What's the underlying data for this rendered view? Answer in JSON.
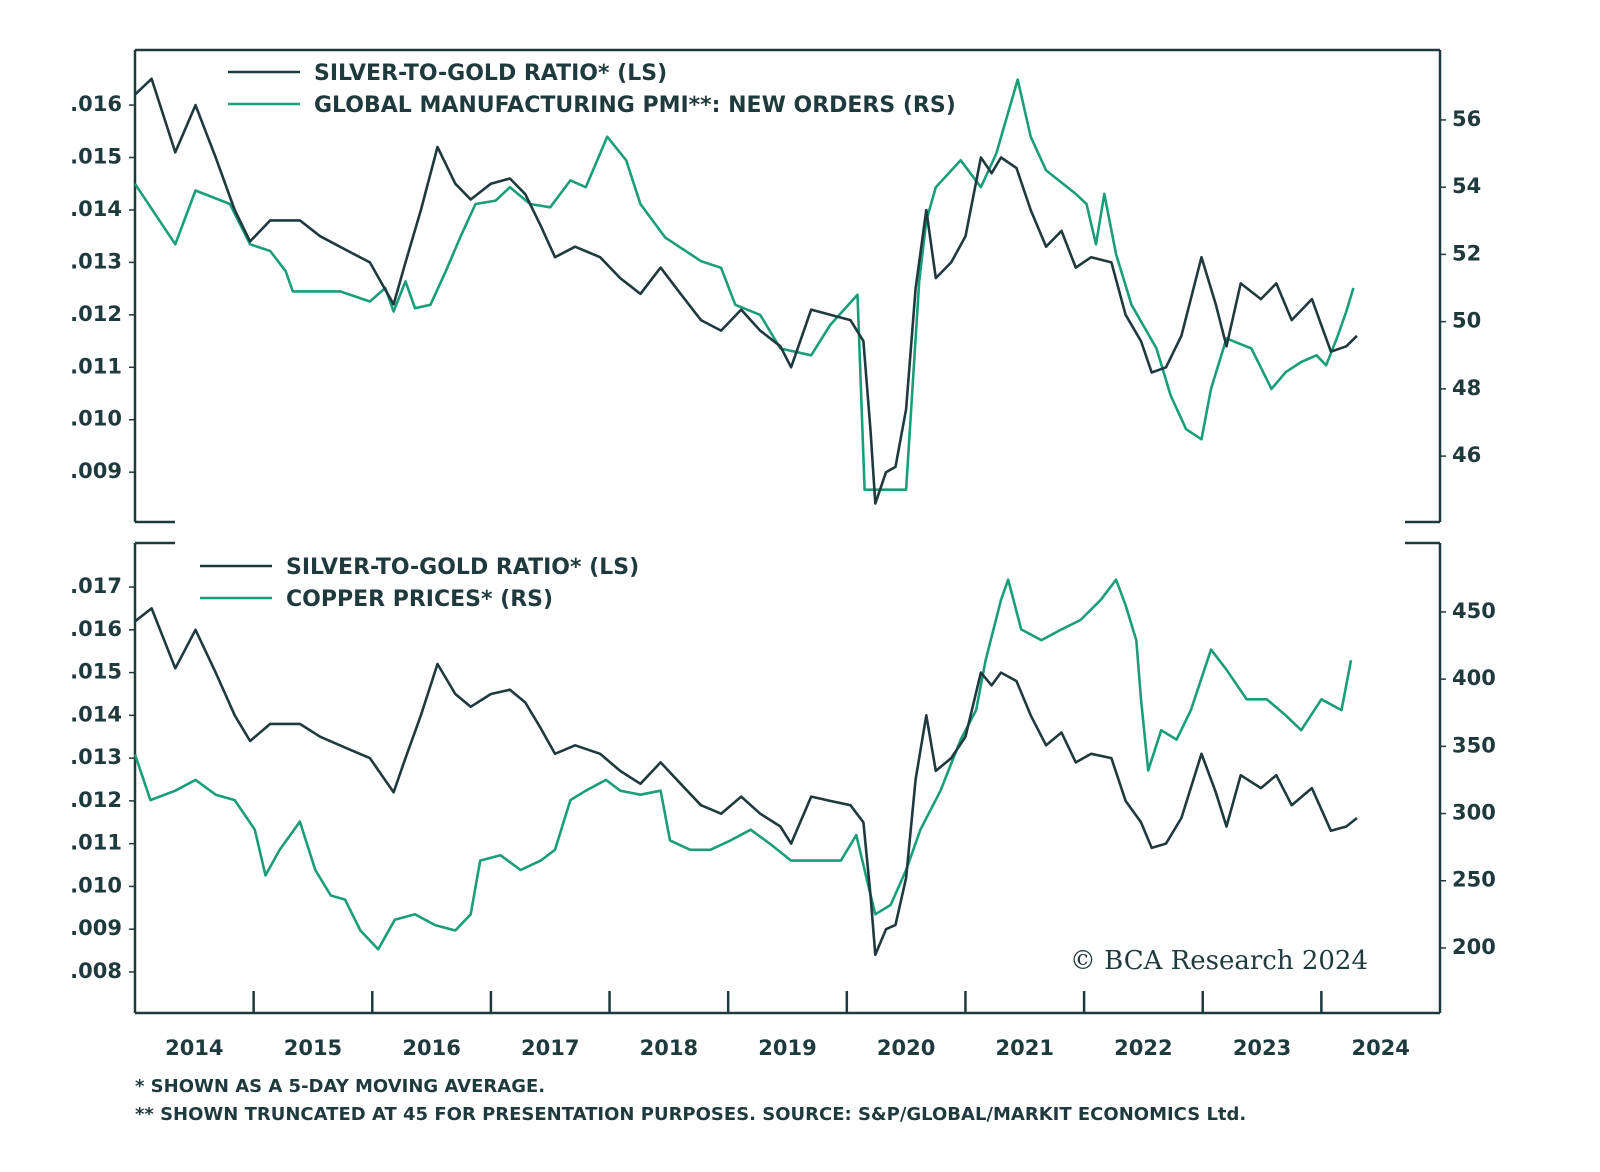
{
  "chart_data": [
    {
      "type": "line",
      "xlim": [
        2014,
        2025
      ],
      "ylim": [
        0.00805,
        0.01705
      ],
      "yticks": [
        {
          "value": 0.009,
          "label": ".009"
        },
        {
          "value": 0.01,
          "label": ".010"
        },
        {
          "value": 0.011,
          "label": ".011"
        },
        {
          "value": 0.012,
          "label": ".012"
        },
        {
          "value": 0.013,
          "label": ".013"
        },
        {
          "value": 0.014,
          "label": ".014"
        },
        {
          "value": 0.015,
          "label": ".015"
        },
        {
          "value": 0.016,
          "label": ".016"
        }
      ],
      "y2lim": [
        44.04,
        58.08
      ],
      "y2ticks": [
        46,
        48,
        50,
        52,
        54,
        56
      ],
      "series": [
        {
          "name": "SILVER-TO-GOLD RATIO* (LS)",
          "color": "#1f3a3d",
          "axis": "y",
          "x": [
            2014.0,
            2014.14,
            2014.34,
            2014.51,
            2014.68,
            2014.84,
            2014.97,
            2015.14,
            2015.39,
            2015.56,
            2015.81,
            2015.98,
            2016.18,
            2016.28,
            2016.41,
            2016.55,
            2016.7,
            2016.83,
            2017.0,
            2017.16,
            2017.29,
            2017.42,
            2017.54,
            2017.71,
            2017.92,
            2018.09,
            2018.26,
            2018.43,
            2018.6,
            2018.77,
            2018.94,
            2019.11,
            2019.27,
            2019.44,
            2019.53,
            2019.7,
            2019.86,
            2020.03,
            2020.14,
            2020.2,
            2020.24,
            2020.33,
            2020.41,
            2020.5,
            2020.58,
            2020.67,
            2020.75,
            2020.88,
            2021.0,
            2021.13,
            2021.22,
            2021.3,
            2021.43,
            2021.55,
            2021.68,
            2021.81,
            2021.93,
            2022.06,
            2022.23,
            2022.35,
            2022.48,
            2022.57,
            2022.69,
            2022.82,
            2022.99,
            2023.11,
            2023.2,
            2023.32,
            2023.49,
            2023.62,
            2023.75,
            2023.92,
            2024.08,
            2024.21,
            2024.3
          ],
          "values": [
            0.0162,
            0.0165,
            0.0151,
            0.016,
            0.015,
            0.014,
            0.0134,
            0.0138,
            0.0138,
            0.0135,
            0.0132,
            0.013,
            0.0122,
            0.013,
            0.014,
            0.0152,
            0.0145,
            0.0142,
            0.0145,
            0.0146,
            0.0143,
            0.0137,
            0.0131,
            0.0133,
            0.0131,
            0.0127,
            0.0124,
            0.0129,
            0.0124,
            0.0119,
            0.0117,
            0.0121,
            0.0117,
            0.0114,
            0.011,
            0.0121,
            0.012,
            0.0119,
            0.0115,
            0.0098,
            0.0084,
            0.009,
            0.0091,
            0.0102,
            0.0125,
            0.014,
            0.0127,
            0.013,
            0.0135,
            0.015,
            0.0147,
            0.015,
            0.0148,
            0.014,
            0.0133,
            0.0136,
            0.0129,
            0.0131,
            0.013,
            0.012,
            0.0115,
            0.0109,
            0.011,
            0.0116,
            0.0131,
            0.0122,
            0.0114,
            0.0126,
            0.0123,
            0.0126,
            0.0119,
            0.0123,
            0.0113,
            0.0114,
            0.0116
          ]
        },
        {
          "name": "GLOBAL MANUFACTURING PMI**: NEW ORDERS (RS)",
          "color": "#1a9e7a",
          "axis": "y2",
          "x": [
            2014.0,
            2014.34,
            2014.51,
            2014.8,
            2014.97,
            2015.14,
            2015.27,
            2015.33,
            2015.73,
            2015.98,
            2016.11,
            2016.18,
            2016.28,
            2016.36,
            2016.49,
            2016.62,
            2016.74,
            2016.87,
            2017.04,
            2017.16,
            2017.33,
            2017.5,
            2017.67,
            2017.8,
            2017.98,
            2018.14,
            2018.26,
            2018.47,
            2018.77,
            2018.94,
            2019.06,
            2019.27,
            2019.44,
            2019.7,
            2019.86,
            2020.09,
            2020.15,
            2020.5,
            2020.61,
            2020.67,
            2020.75,
            2020.96,
            2021.13,
            2021.26,
            2021.44,
            2021.55,
            2021.68,
            2021.93,
            2022.02,
            2022.1,
            2022.17,
            2022.27,
            2022.4,
            2022.61,
            2022.73,
            2022.86,
            2022.99,
            2023.07,
            2023.2,
            2023.41,
            2023.58,
            2023.7,
            2023.83,
            2023.96,
            2024.04,
            2024.13,
            2024.21,
            2024.27
          ],
          "values": [
            54.1,
            52.3,
            53.9,
            53.5,
            52.3,
            52.1,
            51.5,
            50.9,
            50.9,
            50.6,
            51.0,
            50.3,
            51.2,
            50.4,
            50.5,
            51.5,
            52.5,
            53.5,
            53.6,
            54.0,
            53.5,
            53.4,
            54.2,
            54.0,
            55.5,
            54.8,
            53.5,
            52.5,
            51.8,
            51.6,
            50.5,
            50.2,
            49.2,
            49.0,
            49.9,
            50.8,
            45.0,
            45.0,
            51.2,
            53.0,
            54.0,
            54.8,
            54.0,
            55.0,
            57.2,
            55.5,
            54.5,
            53.8,
            53.5,
            52.3,
            53.8,
            52.0,
            50.5,
            49.2,
            47.8,
            46.8,
            46.5,
            48.0,
            49.5,
            49.2,
            48.0,
            48.5,
            48.8,
            49.0,
            48.7,
            49.5,
            50.3,
            51.0
          ]
        }
      ]
    },
    {
      "type": "line",
      "xlim": [
        2014,
        2025
      ],
      "xticks": [
        2015,
        2016,
        2017,
        2018,
        2019,
        2020,
        2021,
        2022,
        2023,
        2024
      ],
      "xtick_labels": [
        {
          "value": 2014.5,
          "label": "2014"
        },
        {
          "value": 2015.5,
          "label": "2015"
        },
        {
          "value": 2016.5,
          "label": "2016"
        },
        {
          "value": 2017.5,
          "label": "2017"
        },
        {
          "value": 2018.5,
          "label": "2018"
        },
        {
          "value": 2019.5,
          "label": "2019"
        },
        {
          "value": 2020.5,
          "label": "2020"
        },
        {
          "value": 2021.5,
          "label": "2021"
        },
        {
          "value": 2022.5,
          "label": "2022"
        },
        {
          "value": 2023.5,
          "label": "2023"
        },
        {
          "value": 2024.5,
          "label": "2024"
        }
      ],
      "ylim": [
        0.00704,
        0.01803
      ],
      "yticks": [
        {
          "value": 0.008,
          "label": ".008"
        },
        {
          "value": 0.009,
          "label": ".009"
        },
        {
          "value": 0.01,
          "label": ".010"
        },
        {
          "value": 0.011,
          "label": ".011"
        },
        {
          "value": 0.012,
          "label": ".012"
        },
        {
          "value": 0.013,
          "label": ".013"
        },
        {
          "value": 0.014,
          "label": ".014"
        },
        {
          "value": 0.015,
          "label": ".015"
        },
        {
          "value": 0.016,
          "label": ".016"
        },
        {
          "value": 0.017,
          "label": ".017"
        }
      ],
      "y2lim": [
        151.6,
        501.3
      ],
      "y2ticks": [
        200,
        250,
        300,
        350,
        400,
        450
      ],
      "series": [
        {
          "name": "SILVER-TO-GOLD RATIO* (LS)",
          "color": "#1f3a3d",
          "axis": "y",
          "x": [
            2014.0,
            2014.14,
            2014.34,
            2014.51,
            2014.68,
            2014.84,
            2014.97,
            2015.14,
            2015.39,
            2015.56,
            2015.81,
            2015.98,
            2016.18,
            2016.28,
            2016.41,
            2016.55,
            2016.7,
            2016.83,
            2017.0,
            2017.16,
            2017.29,
            2017.42,
            2017.54,
            2017.71,
            2017.92,
            2018.09,
            2018.26,
            2018.43,
            2018.6,
            2018.77,
            2018.94,
            2019.11,
            2019.27,
            2019.44,
            2019.53,
            2019.7,
            2019.86,
            2020.03,
            2020.14,
            2020.2,
            2020.24,
            2020.33,
            2020.41,
            2020.5,
            2020.58,
            2020.67,
            2020.75,
            2020.88,
            2021.0,
            2021.13,
            2021.22,
            2021.3,
            2021.43,
            2021.55,
            2021.68,
            2021.81,
            2021.93,
            2022.06,
            2022.23,
            2022.35,
            2022.48,
            2022.57,
            2022.69,
            2022.82,
            2022.99,
            2023.11,
            2023.2,
            2023.32,
            2023.49,
            2023.62,
            2023.75,
            2023.92,
            2024.08,
            2024.21,
            2024.3
          ],
          "values": [
            0.0162,
            0.0165,
            0.0151,
            0.016,
            0.015,
            0.014,
            0.0134,
            0.0138,
            0.0138,
            0.0135,
            0.0132,
            0.013,
            0.0122,
            0.013,
            0.014,
            0.0152,
            0.0145,
            0.0142,
            0.0145,
            0.0146,
            0.0143,
            0.0137,
            0.0131,
            0.0133,
            0.0131,
            0.0127,
            0.0124,
            0.0129,
            0.0124,
            0.0119,
            0.0117,
            0.0121,
            0.0117,
            0.0114,
            0.011,
            0.0121,
            0.012,
            0.0119,
            0.0115,
            0.0098,
            0.0084,
            0.009,
            0.0091,
            0.0102,
            0.0125,
            0.014,
            0.0127,
            0.013,
            0.0135,
            0.015,
            0.0147,
            0.015,
            0.0148,
            0.014,
            0.0133,
            0.0136,
            0.0129,
            0.0131,
            0.013,
            0.012,
            0.0115,
            0.0109,
            0.011,
            0.0116,
            0.0131,
            0.0122,
            0.0114,
            0.0126,
            0.0123,
            0.0126,
            0.0119,
            0.0123,
            0.0113,
            0.0114,
            0.0116
          ]
        },
        {
          "name": "COPPER PRICES* (RS)",
          "color": "#1a9e7a",
          "axis": "y2",
          "x": [
            2014.0,
            2014.13,
            2014.34,
            2014.51,
            2014.68,
            2014.84,
            2015.01,
            2015.1,
            2015.22,
            2015.39,
            2015.52,
            2015.65,
            2015.77,
            2015.9,
            2016.05,
            2016.19,
            2016.36,
            2016.53,
            2016.7,
            2016.83,
            2016.91,
            2017.08,
            2017.25,
            2017.42,
            2017.54,
            2017.67,
            2017.8,
            2017.97,
            2018.09,
            2018.26,
            2018.43,
            2018.51,
            2018.68,
            2018.85,
            2019.02,
            2019.19,
            2019.36,
            2019.53,
            2019.74,
            2019.95,
            2020.08,
            2020.19,
            2020.24,
            2020.37,
            2020.5,
            2020.62,
            2020.79,
            2020.96,
            2021.09,
            2021.17,
            2021.3,
            2021.36,
            2021.47,
            2021.64,
            2021.81,
            2021.97,
            2022.14,
            2022.27,
            2022.35,
            2022.44,
            2022.48,
            2022.54,
            2022.65,
            2022.78,
            2022.9,
            2023.07,
            2023.2,
            2023.37,
            2023.54,
            2023.7,
            2023.83,
            2024.0,
            2024.17,
            2024.25
          ],
          "values": [
            344,
            310,
            317,
            325,
            314,
            310,
            288,
            254,
            273,
            294,
            258,
            239,
            236,
            213,
            199,
            221,
            225,
            217,
            213,
            225,
            265,
            269,
            258,
            265,
            273,
            310,
            317,
            325,
            317,
            314,
            317,
            280,
            273,
            273,
            280,
            288,
            277,
            265,
            265,
            265,
            284,
            243,
            225,
            232,
            258,
            288,
            317,
            355,
            377,
            414,
            459,
            474,
            437,
            429,
            437,
            444,
            459,
            474,
            455,
            429,
            385,
            332,
            362,
            355,
            377,
            422,
            407,
            385,
            385,
            373,
            362,
            385,
            377,
            414
          ]
        }
      ]
    }
  ],
  "credit": "© BCA Research 2024",
  "footnotes": [
    "* SHOWN AS A 5-DAY MOVING AVERAGE.",
    "** SHOWN TRUNCATED AT 45 FOR PRESENTATION PURPOSES. SOURCE: S&P/GLOBAL/MARKIT ECONOMICS Ltd."
  ]
}
